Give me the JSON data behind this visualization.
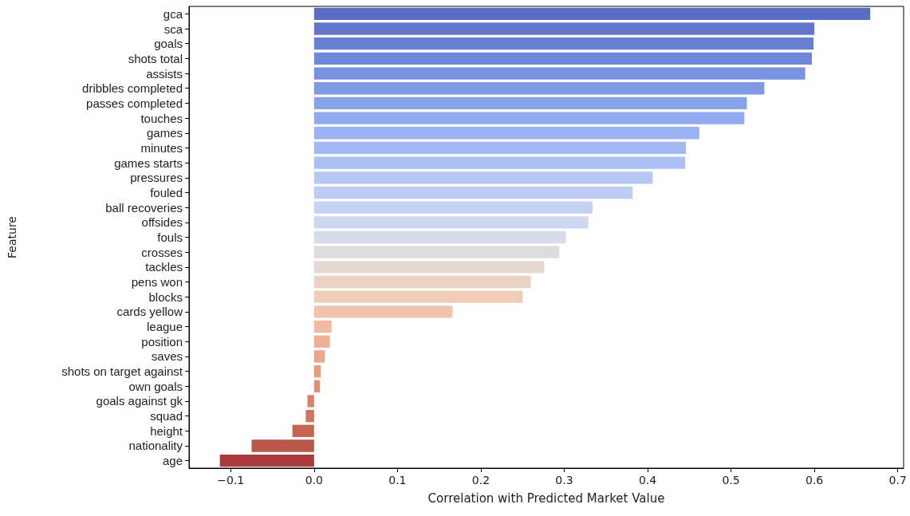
{
  "chart_data": {
    "type": "bar",
    "orientation": "horizontal",
    "xlabel": "Correlation with Predicted Market Value",
    "ylabel": "Feature",
    "categories": [
      "gca",
      "sca",
      "goals",
      "shots total",
      "assists",
      "dribbles completed",
      "passes completed",
      "touches",
      "games",
      "minutes",
      "games starts",
      "pressures",
      "fouled",
      "ball recoveries",
      "offsides",
      "fouls",
      "crosses",
      "tackles",
      "pens won",
      "blocks",
      "cards yellow",
      "league",
      "position",
      "saves",
      "shots on target against",
      "own goals",
      "goals against gk",
      "squad",
      "height",
      "nationality",
      "age"
    ],
    "values": [
      0.667,
      0.6,
      0.599,
      0.597,
      0.589,
      0.54,
      0.519,
      0.516,
      0.462,
      0.446,
      0.445,
      0.406,
      0.382,
      0.334,
      0.329,
      0.302,
      0.294,
      0.276,
      0.26,
      0.25,
      0.166,
      0.021,
      0.019,
      0.013,
      0.008,
      0.007,
      -0.008,
      -0.01,
      -0.026,
      -0.075,
      -0.113
    ],
    "colors": [
      "#5a6ec6",
      "#6077cc",
      "#6780d3",
      "#6f88da",
      "#7891e0",
      "#8099e5",
      "#88a2ea",
      "#91aaee",
      "#9ab2f1",
      "#a3b9f3",
      "#acc0f5",
      "#b5c7f5",
      "#becdf5",
      "#c6d2f3",
      "#ced7f0",
      "#d6dcea",
      "#dddcdc",
      "#e5d8d1",
      "#ebd2c6",
      "#efcbba",
      "#f1c3ae",
      "#f1baa2",
      "#f0b096",
      "#eda68a",
      "#e89b7f",
      "#e28f74",
      "#da8369",
      "#d0755f",
      "#c56655",
      "#b9574c",
      "#aa3a3e"
    ],
    "xlim": [
      -0.15,
      0.707
    ],
    "xticks": [
      {
        "value": -0.1,
        "label": "−0.1"
      },
      {
        "value": 0,
        "label": "0.0"
      },
      {
        "value": 0.1,
        "label": "0.1"
      },
      {
        "value": 0.2,
        "label": "0.2"
      },
      {
        "value": 0.3,
        "label": "0.3"
      },
      {
        "value": 0.4,
        "label": "0.4"
      },
      {
        "value": 0.5,
        "label": "0.5"
      },
      {
        "value": 0.6,
        "label": "0.6"
      },
      {
        "value": 0.7,
        "label": "0.7"
      }
    ]
  }
}
